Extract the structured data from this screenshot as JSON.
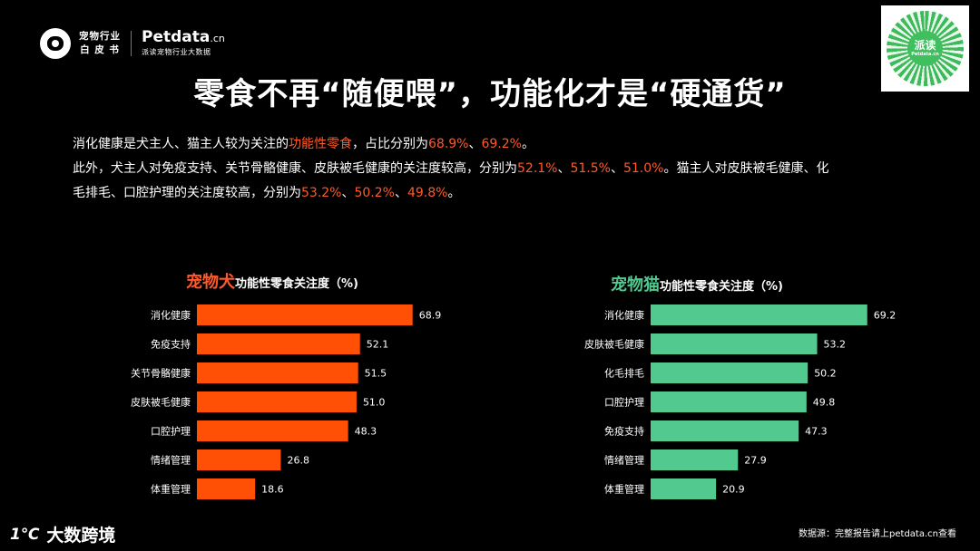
{
  "header": {
    "logo_line1": "宠物行业",
    "logo_line2": "白 皮 书",
    "brand_name": "Petdata",
    "brand_suffix": ".cn",
    "brand_subtitle": "派读宠物行业大数据",
    "qr_label": "派读",
    "qr_sublabel": "Petdata.cn"
  },
  "title": "零食不再“随便喂”，功能化才是“硬通货”",
  "description": {
    "line1_a": "消化健康是犬主人、猫主人较为关注的",
    "line1_hl1": "功能性零食",
    "line1_b": "，占比分别为",
    "line1_hl2": "68.9%",
    "line1_c": "、",
    "line1_hl3": "69.2%",
    "line1_d": "。",
    "line2_a": "此外，犬主人对免疫支持、关节骨骼健康、皮肤被毛健康的关注度较高，分别为",
    "line2_hl1": "52.1%",
    "line2_sep1": "、",
    "line2_hl2": "51.5%",
    "line2_sep2": "、",
    "line2_hl3": "51.0%",
    "line2_b": "。猫主人对皮肤被毛健康、化",
    "line3_a": "毛排毛、口腔护理的关注度较高，分别为",
    "line3_hl1": "53.2%",
    "line3_sep1": "、",
    "line3_hl2": "50.2%",
    "line3_sep2": "、",
    "line3_hl3": "49.8%",
    "line3_b": "。"
  },
  "colors": {
    "dog_bar": "#ff5005",
    "cat_bar": "#52c98f",
    "highlight": "#ff5a2a",
    "cat_title": "#52c98f"
  },
  "chart_data": [
    {
      "type": "bar",
      "orientation": "horizontal",
      "title_highlight": "宠物犬",
      "title": "功能性零食关注度（%)",
      "categories": [
        "消化健康",
        "免疫支持",
        "关节骨骼健康",
        "皮肤被毛健康",
        "口腔护理",
        "情绪管理",
        "体重管理"
      ],
      "values": [
        68.9,
        52.1,
        51.5,
        51.0,
        48.3,
        26.8,
        18.6
      ],
      "value_labels": [
        "68.9",
        "52.1",
        "51.5",
        "51.0",
        "48.3",
        "26.8",
        "18.6"
      ],
      "xlim": [
        0,
        100
      ],
      "grid": false,
      "legend": "none"
    },
    {
      "type": "bar",
      "orientation": "horizontal",
      "title_highlight": "宠物猫",
      "title": "功能性零食关注度（%)",
      "categories": [
        "消化健康",
        "皮肤被毛健康",
        "化毛排毛",
        "口腔护理",
        "免疫支持",
        "情绪管理",
        "体重管理"
      ],
      "values": [
        69.2,
        53.2,
        50.2,
        49.8,
        47.3,
        27.9,
        20.9
      ],
      "value_labels": [
        "69.2",
        "53.2",
        "50.2",
        "49.8",
        "47.3",
        "27.9",
        "20.9"
      ],
      "xlim": [
        0,
        100
      ],
      "grid": false,
      "legend": "none"
    }
  ],
  "footer": {
    "logo_mark": "1℃",
    "logo_text": "大数跨境",
    "source_note": "数据源：完整报告请上petdata.cn查看"
  }
}
